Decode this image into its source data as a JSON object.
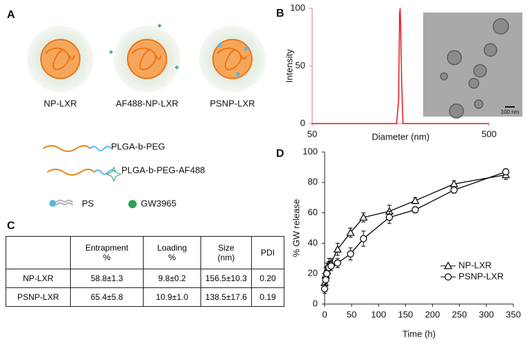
{
  "panel_a": {
    "letter": "A",
    "particles": [
      "NP-LXR",
      "AF488-NP-LXR",
      "PSNP-LXR"
    ],
    "legend": [
      "PLGA-b-PEG",
      "PLGA-b-PEG-AF488",
      "PS",
      "GW3965"
    ]
  },
  "panel_c": {
    "letter": "C",
    "header": [
      "Entrapment %",
      "Loading %",
      "Size (nm)",
      "PDI"
    ],
    "rows": [
      [
        "NP-LXR",
        "58.8±1.3",
        "9.8±0.2",
        "156.5±10.3",
        "0.20"
      ],
      [
        "PSNP-LXR",
        "65.4±5.8",
        "10.9±1.0",
        "138.5±17.6",
        "0.19"
      ]
    ]
  },
  "chart_data": [
    {
      "type": "line",
      "letter": "B",
      "xlabel": "Diameter (nm)",
      "ylabel": "Intensity",
      "xscale": "log",
      "xlim": [
        50,
        500
      ],
      "xticks": [
        50,
        500
      ],
      "ylim": [
        0,
        100
      ],
      "yticks": [
        0,
        50,
        100
      ],
      "inset_label": "100 nm",
      "series": [
        {
          "name": "Intensity",
          "color": "#e8141c",
          "x": [
            50,
            150,
            154,
            156,
            157,
            158,
            160,
            163,
            500
          ],
          "values": [
            0,
            0,
            20,
            95,
            100,
            88,
            40,
            0,
            0
          ]
        }
      ]
    },
    {
      "type": "line",
      "letter": "D",
      "xlabel": "Time (h)",
      "ylabel": "% GW release",
      "xlim": [
        0,
        350
      ],
      "xticks": [
        0,
        50,
        100,
        150,
        200,
        250,
        300,
        350
      ],
      "ylim": [
        0,
        100
      ],
      "yticks": [
        0,
        20,
        40,
        60,
        80,
        100
      ],
      "legend": "lower right",
      "series": [
        {
          "name": "NP-LXR",
          "color": "#000000",
          "marker": "triangle",
          "x": [
            0,
            2,
            4,
            8,
            12,
            24,
            48,
            72,
            120,
            168,
            240,
            336
          ],
          "values": [
            14,
            19,
            22,
            26,
            27,
            36,
            47,
            57,
            61,
            68,
            79,
            85
          ],
          "errors": [
            4,
            5,
            5,
            4,
            3,
            4,
            3,
            3,
            4,
            2,
            2,
            3
          ]
        },
        {
          "name": "PSNP-LXR",
          "color": "#000000",
          "marker": "circle",
          "x": [
            0,
            2,
            4,
            8,
            12,
            24,
            48,
            72,
            120,
            168,
            240,
            336
          ],
          "values": [
            10,
            16,
            20,
            24,
            25,
            27,
            33,
            43,
            57,
            62,
            75,
            87
          ],
          "errors": [
            3,
            4,
            5,
            4,
            3,
            3,
            4,
            5,
            4,
            2,
            2,
            2
          ]
        }
      ]
    }
  ]
}
